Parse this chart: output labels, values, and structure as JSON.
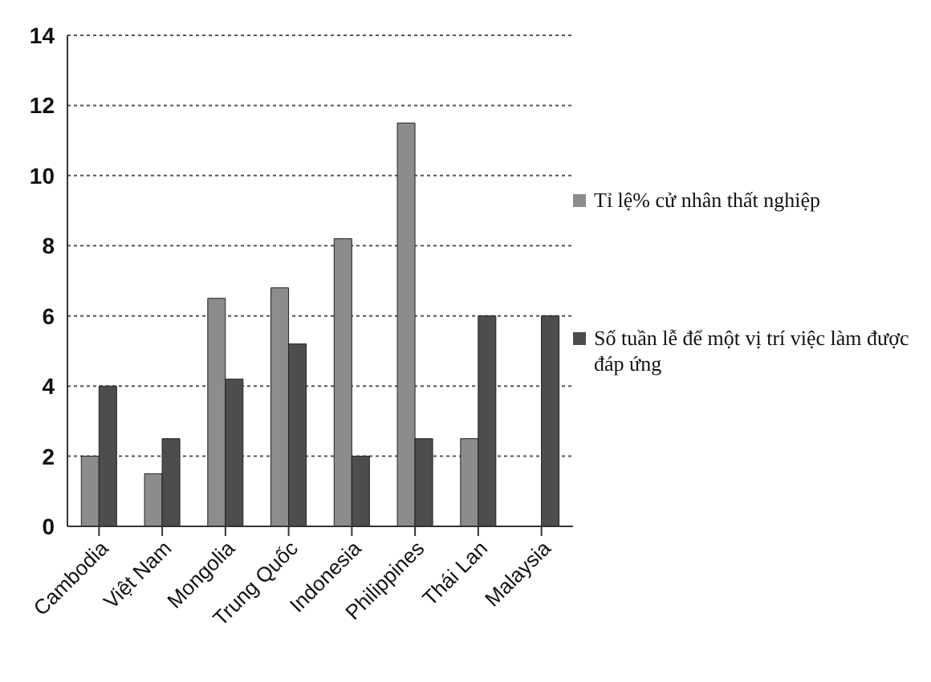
{
  "chart_data": {
    "type": "bar",
    "categories": [
      "Cambodia",
      "Việt Nam",
      "Mongolia",
      "Trung Quốc",
      "Indonesia",
      "Philippines",
      "Thái Lan",
      "Malaysia"
    ],
    "series": [
      {
        "name": "Tỉ lệ% cử nhân thất nghiệp",
        "color": "#8c8c8c",
        "values": [
          2,
          1.5,
          6.5,
          6.8,
          8.2,
          11.5,
          2.5,
          null
        ]
      },
      {
        "name": "Số tuần lễ để một vị trí việc làm được đáp ứng",
        "color": "#4d4d4d",
        "values": [
          4,
          2.5,
          4.2,
          5.2,
          2,
          2.5,
          6,
          6
        ]
      }
    ],
    "ylim": [
      0,
      14
    ],
    "yticks": [
      0,
      2,
      4,
      6,
      8,
      10,
      12,
      14
    ],
    "grid": "y",
    "legend": "right"
  }
}
